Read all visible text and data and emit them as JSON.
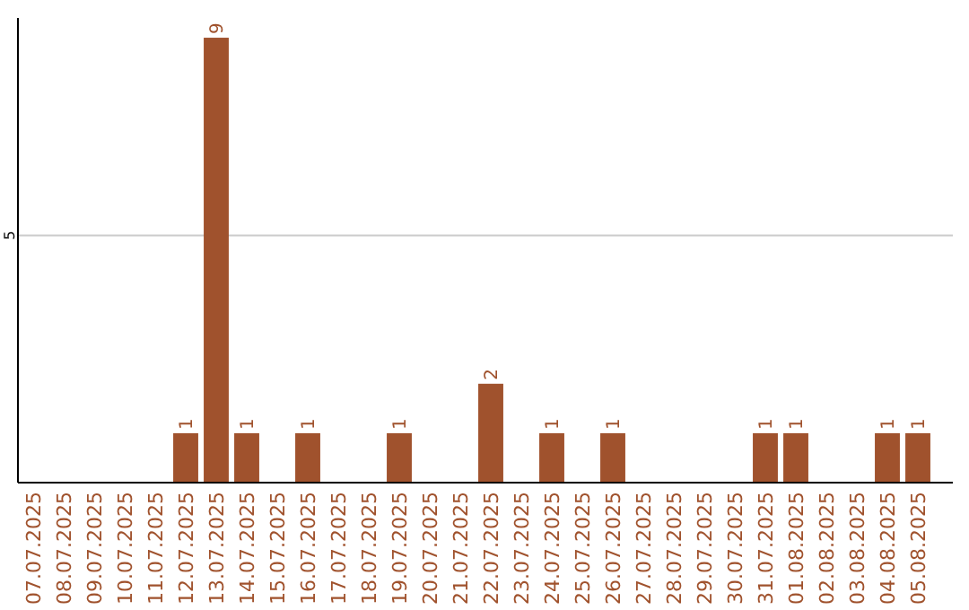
{
  "chart_data": {
    "type": "bar",
    "categories": [
      "07.07.2025",
      "08.07.2025",
      "09.07.2025",
      "10.07.2025",
      "11.07.2025",
      "12.07.2025",
      "13.07.2025",
      "14.07.2025",
      "15.07.2025",
      "16.07.2025",
      "17.07.2025",
      "18.07.2025",
      "19.07.2025",
      "20.07.2025",
      "21.07.2025",
      "22.07.2025",
      "23.07.2025",
      "24.07.2025",
      "25.07.2025",
      "26.07.2025",
      "27.07.2025",
      "28.07.2025",
      "29.07.2025",
      "30.07.2025",
      "31.07.2025",
      "01.08.2025",
      "02.08.2025",
      "03.08.2025",
      "04.08.2025",
      "05.08.2025"
    ],
    "values": [
      0,
      0,
      0,
      0,
      0,
      1,
      9,
      1,
      0,
      1,
      0,
      0,
      1,
      0,
      0,
      2,
      0,
      1,
      0,
      1,
      0,
      0,
      0,
      0,
      1,
      1,
      0,
      0,
      1,
      1
    ],
    "value_labels": [
      null,
      null,
      null,
      null,
      null,
      "1",
      "9",
      "1",
      null,
      "1",
      null,
      null,
      "1",
      null,
      null,
      "2",
      null,
      "1",
      null,
      "1",
      null,
      null,
      null,
      null,
      "1",
      "1",
      null,
      null,
      "1",
      "1"
    ],
    "color": "#a0522d",
    "ylim": [
      0,
      9.4
    ],
    "yticks": [
      5
    ],
    "grid": "y"
  }
}
